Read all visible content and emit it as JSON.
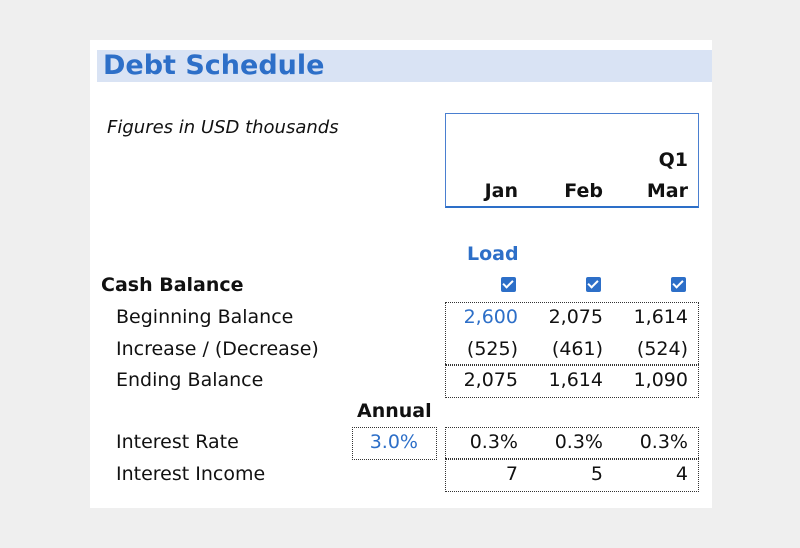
{
  "header": {
    "title": "Debt Schedule",
    "note": "Figures in USD thousands"
  },
  "columns": {
    "quarter": "Q1",
    "months": [
      "Jan",
      "Feb",
      "Mar"
    ]
  },
  "load": "Load",
  "section": "Cash Balance",
  "rows": [
    {
      "label": "Beginning Balance",
      "values": [
        "2,600",
        "2,075",
        "1,614"
      ]
    },
    {
      "label": "Increase / (Decrease)",
      "values": [
        "(525)",
        "(461)",
        "(524)"
      ]
    },
    {
      "label": "Ending Balance",
      "values": [
        "2,075",
        "1,614",
        "1,090"
      ]
    }
  ],
  "annual": {
    "label": "Annual",
    "rate": "3.0%"
  },
  "interest_rows": [
    {
      "label": "Interest Rate",
      "values": [
        "0.3%",
        "0.3%",
        "0.3%"
      ]
    },
    {
      "label": "Interest Income",
      "values": [
        "7",
        "5",
        "4"
      ]
    }
  ]
}
